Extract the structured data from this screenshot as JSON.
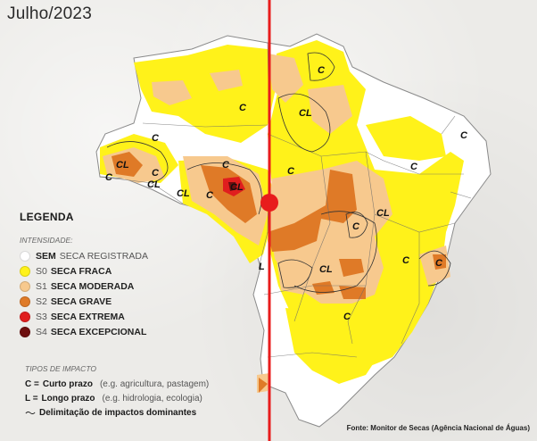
{
  "title": "Julho/2023",
  "legend": {
    "title": "LEGENDA",
    "intensity_label": "INTENSIDADE:",
    "levels": [
      {
        "code": "SEM",
        "name": "SECA REGISTRADA",
        "color": "#ffffff"
      },
      {
        "code": "S0",
        "name": "SECA FRACA",
        "color": "#fff21a"
      },
      {
        "code": "S1",
        "name": "SECA MODERADA",
        "color": "#f7c98e"
      },
      {
        "code": "S2",
        "name": "SECA GRAVE",
        "color": "#df7a27"
      },
      {
        "code": "S3",
        "name": "SECA EXTREMA",
        "color": "#e01e1e"
      },
      {
        "code": "S4",
        "name": "SECA EXCEPCIONAL",
        "color": "#6e0f0f"
      }
    ]
  },
  "impact": {
    "title": "TIPOS DE IMPACTO",
    "types": [
      {
        "key": "C =",
        "name": "Curto prazo",
        "desc": "(e.g. agricultura, pastagem)"
      },
      {
        "key": "L =",
        "name": "Longo prazo",
        "desc": "(e.g. hidrologia, ecologia)"
      }
    ],
    "delimitation": "Delimitação de impactos dominantes"
  },
  "map_labels": [
    "C",
    "C",
    "CL",
    "C",
    "CL",
    "C",
    "CL",
    "CL",
    "C",
    "CL",
    "C",
    "C",
    "C",
    "C",
    "CL",
    "C",
    "CL",
    "C",
    "C",
    "C",
    "C",
    "L"
  ],
  "source": "Fonte: Monitor de Secas (Agência Nacional de Águas)",
  "marker_color": "#e81c1c"
}
